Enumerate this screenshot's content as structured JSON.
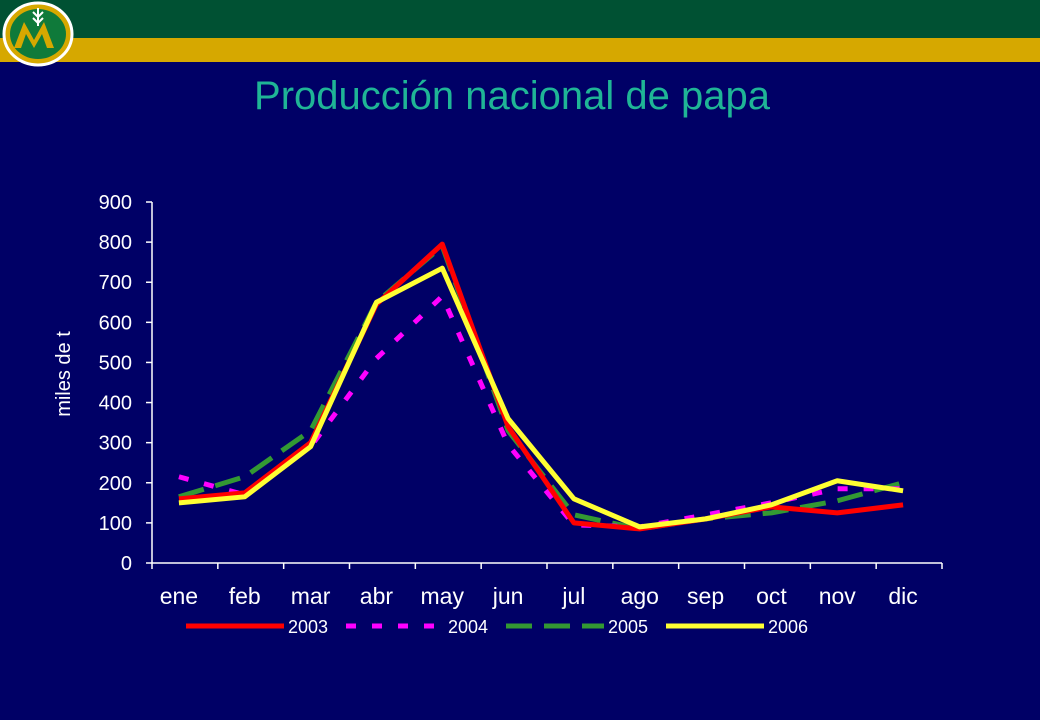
{
  "slide": {
    "title": "Producción nacional de papa"
  },
  "colors": {
    "background": "#000066",
    "header_green": "#005133",
    "header_gold": "#d6a800",
    "title": "#1fb596",
    "axis": "#ffffff"
  },
  "chart_data": {
    "type": "line",
    "title": "",
    "xlabel": "",
    "ylabel": "miles de t",
    "ylim": [
      0,
      900
    ],
    "yticks": [
      "0",
      "100",
      "200",
      "300",
      "400",
      "500",
      "600",
      "700",
      "800",
      "900"
    ],
    "categories": [
      "ene",
      "feb",
      "mar",
      "abr",
      "may",
      "jun",
      "jul",
      "ago",
      "sep",
      "oct",
      "nov",
      "dic"
    ],
    "legend_position": "bottom",
    "grid": false,
    "series": [
      {
        "name": "2003",
        "color": "#ff0000",
        "dash": "solid",
        "values": [
          160,
          175,
          300,
          645,
          795,
          340,
          100,
          85,
          110,
          140,
          125,
          145
        ]
      },
      {
        "name": "2004",
        "color": "#ff00ff",
        "dash": "dotted",
        "values": [
          215,
          170,
          290,
          510,
          665,
          295,
          95,
          90,
          120,
          150,
          185,
          185
        ]
      },
      {
        "name": "2005",
        "color": "#339933",
        "dash": "dashed",
        "values": [
          165,
          215,
          330,
          650,
          790,
          330,
          120,
          85,
          110,
          125,
          155,
          200
        ]
      },
      {
        "name": "2006",
        "color": "#ffff33",
        "dash": "solid",
        "values": [
          150,
          165,
          290,
          650,
          735,
          360,
          160,
          90,
          110,
          145,
          205,
          180
        ]
      }
    ]
  }
}
